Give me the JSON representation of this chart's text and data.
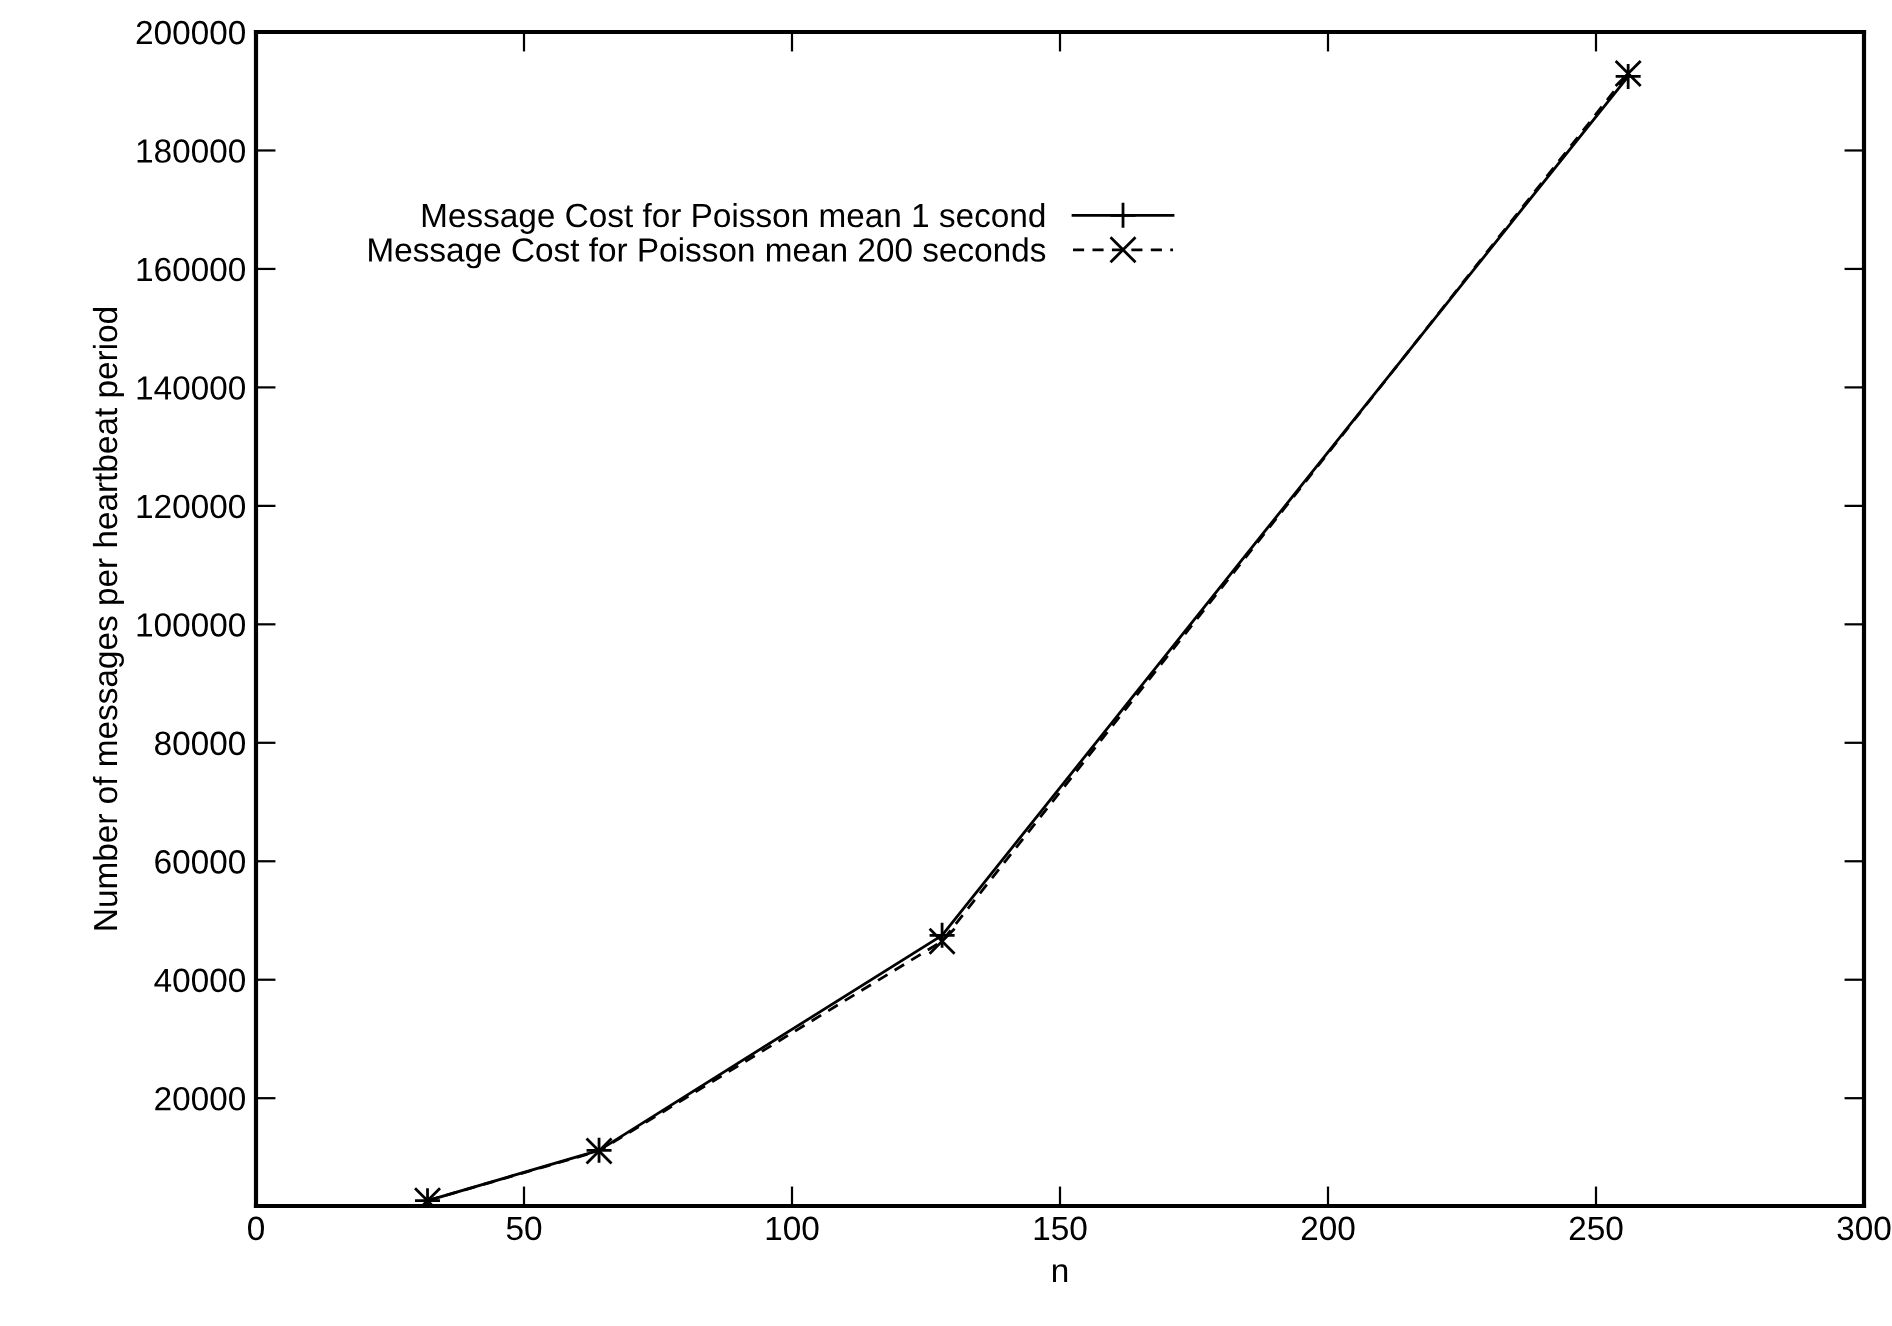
{
  "chart_data": {
    "type": "line",
    "xlabel": "n",
    "ylabel": "Number of messages per heartbeat period",
    "x": [
      32,
      64,
      128,
      256
    ],
    "series": [
      {
        "name": "Message Cost for Poisson mean 1 second",
        "color": "#000000",
        "values": [
          2700,
          11200,
          47500,
          192500
        ],
        "marker": "plus",
        "line_style": "solid"
      },
      {
        "name": "Message Cost for Poisson mean 200 seconds",
        "color": "#000000",
        "values": [
          2700,
          11100,
          46500,
          193000
        ],
        "marker": "cross",
        "line_style": "dashed"
      }
    ],
    "xlim": [
      0,
      300
    ],
    "xticks": [
      0,
      50,
      100,
      150,
      200,
      250,
      300
    ],
    "ylim": [
      1800,
      200000
    ],
    "yticks": [
      20000,
      40000,
      60000,
      80000,
      100000,
      120000,
      140000,
      160000,
      180000,
      200000
    ],
    "grid": false,
    "legend": "top left"
  }
}
